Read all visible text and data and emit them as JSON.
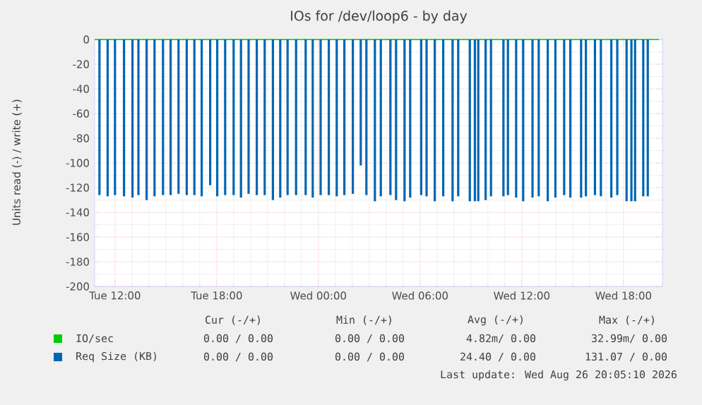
{
  "chart_data": {
    "type": "bar",
    "title": "IOs for /dev/loop6 - by day",
    "ylabel": "Units read (-) / write (+)",
    "xlim": [
      "2026-08-25T10:48",
      "2026-08-26T20:18"
    ],
    "ylim": [
      -200,
      0
    ],
    "xticks": [
      {
        "value": "2026-08-25T12:00",
        "label": "Tue 12:00"
      },
      {
        "value": "2026-08-25T18:00",
        "label": "Tue 18:00"
      },
      {
        "value": "2026-08-26T00:00",
        "label": "Wed 00:00"
      },
      {
        "value": "2026-08-26T06:00",
        "label": "Wed 06:00"
      },
      {
        "value": "2026-08-26T12:00",
        "label": "Wed 12:00"
      },
      {
        "value": "2026-08-26T18:00",
        "label": "Wed 18:00"
      }
    ],
    "yticks": [
      0,
      -20,
      -40,
      -60,
      -80,
      -100,
      -120,
      -140,
      -160,
      -180,
      -200
    ],
    "grid": true,
    "legend": "bottom",
    "series": [
      {
        "name": "IO/sec",
        "type": "line",
        "color": "#00cc00",
        "x": [
          "2026-08-25T10:48",
          "2026-08-26T20:05"
        ],
        "values": [
          0,
          0
        ]
      },
      {
        "name": "Req Size (KB)",
        "color": "#0066b3",
        "x": [
          "2026-08-25T11:05",
          "2026-08-25T11:34",
          "2026-08-25T12:00",
          "2026-08-25T12:32",
          "2026-08-25T13:02",
          "2026-08-25T13:23",
          "2026-08-25T13:52",
          "2026-08-25T14:20",
          "2026-08-25T14:50",
          "2026-08-25T15:17",
          "2026-08-25T15:45",
          "2026-08-25T16:14",
          "2026-08-25T16:41",
          "2026-08-25T17:07",
          "2026-08-25T17:37",
          "2026-08-25T18:02",
          "2026-08-25T18:30",
          "2026-08-25T19:00",
          "2026-08-25T19:26",
          "2026-08-25T19:53",
          "2026-08-25T20:22",
          "2026-08-25T20:50",
          "2026-08-25T21:19",
          "2026-08-25T21:45",
          "2026-08-25T22:11",
          "2026-08-25T22:41",
          "2026-08-25T23:15",
          "2026-08-25T23:40",
          "2026-08-26T00:08",
          "2026-08-26T00:37",
          "2026-08-26T01:05",
          "2026-08-26T01:32",
          "2026-08-26T02:02",
          "2026-08-26T02:30",
          "2026-08-26T02:50",
          "2026-08-26T03:20",
          "2026-08-26T03:41",
          "2026-08-26T04:15",
          "2026-08-26T04:35",
          "2026-08-26T05:05",
          "2026-08-26T05:25",
          "2026-08-26T06:04",
          "2026-08-26T06:23",
          "2026-08-26T06:52",
          "2026-08-26T07:22",
          "2026-08-26T07:55",
          "2026-08-26T08:15",
          "2026-08-26T08:56",
          "2026-08-26T09:14",
          "2026-08-26T09:26",
          "2026-08-26T09:52",
          "2026-08-26T10:11",
          "2026-08-26T10:55",
          "2026-08-26T11:11",
          "2026-08-26T11:40",
          "2026-08-26T12:05",
          "2026-08-26T12:38",
          "2026-08-26T13:00",
          "2026-08-26T13:32",
          "2026-08-26T13:59",
          "2026-08-26T14:30",
          "2026-08-26T14:52",
          "2026-08-26T15:30",
          "2026-08-26T15:47",
          "2026-08-26T16:19",
          "2026-08-26T16:40",
          "2026-08-26T17:17",
          "2026-08-26T17:38",
          "2026-08-26T18:11",
          "2026-08-26T18:28",
          "2026-08-26T18:41",
          "2026-08-26T19:10",
          "2026-08-26T19:26"
        ],
        "values": [
          -126,
          -127,
          -126,
          -127,
          -128,
          -126,
          -130,
          -127,
          -126,
          -126,
          -125,
          -126,
          -126,
          -127,
          -118,
          -127,
          -126,
          -126,
          -128,
          -125,
          -126,
          -126,
          -130,
          -128,
          -126,
          -126,
          -126,
          -128,
          -126,
          -126,
          -127,
          -126,
          -125,
          -102,
          -126,
          -131,
          -127,
          -126,
          -130,
          -131,
          -128,
          -126,
          -127,
          -131,
          -127,
          -131,
          -127,
          -131,
          -131,
          -131,
          -130,
          -127,
          -127,
          -126,
          -128,
          -131,
          -128,
          -127,
          -131,
          -128,
          -126,
          -128,
          -128,
          -127,
          -126,
          -127,
          -128,
          -126,
          -131,
          -131,
          -131,
          -127,
          -127
        ]
      }
    ],
    "annotations": [
      "Cur (-/+)",
      "Min (-/+)",
      "Avg (-/+)",
      "Max (-/+)",
      "0.00 / 0.00",
      "0.00 / 0.00",
      "4.82m/ 0.00",
      "32.99m/ 0.00",
      "0.00 / 0.00",
      "0.00 / 0.00",
      "24.40 / 0.00",
      "131.07 / 0.00",
      "Last update: Wed Aug 26 20:05:10 2026"
    ]
  }
}
